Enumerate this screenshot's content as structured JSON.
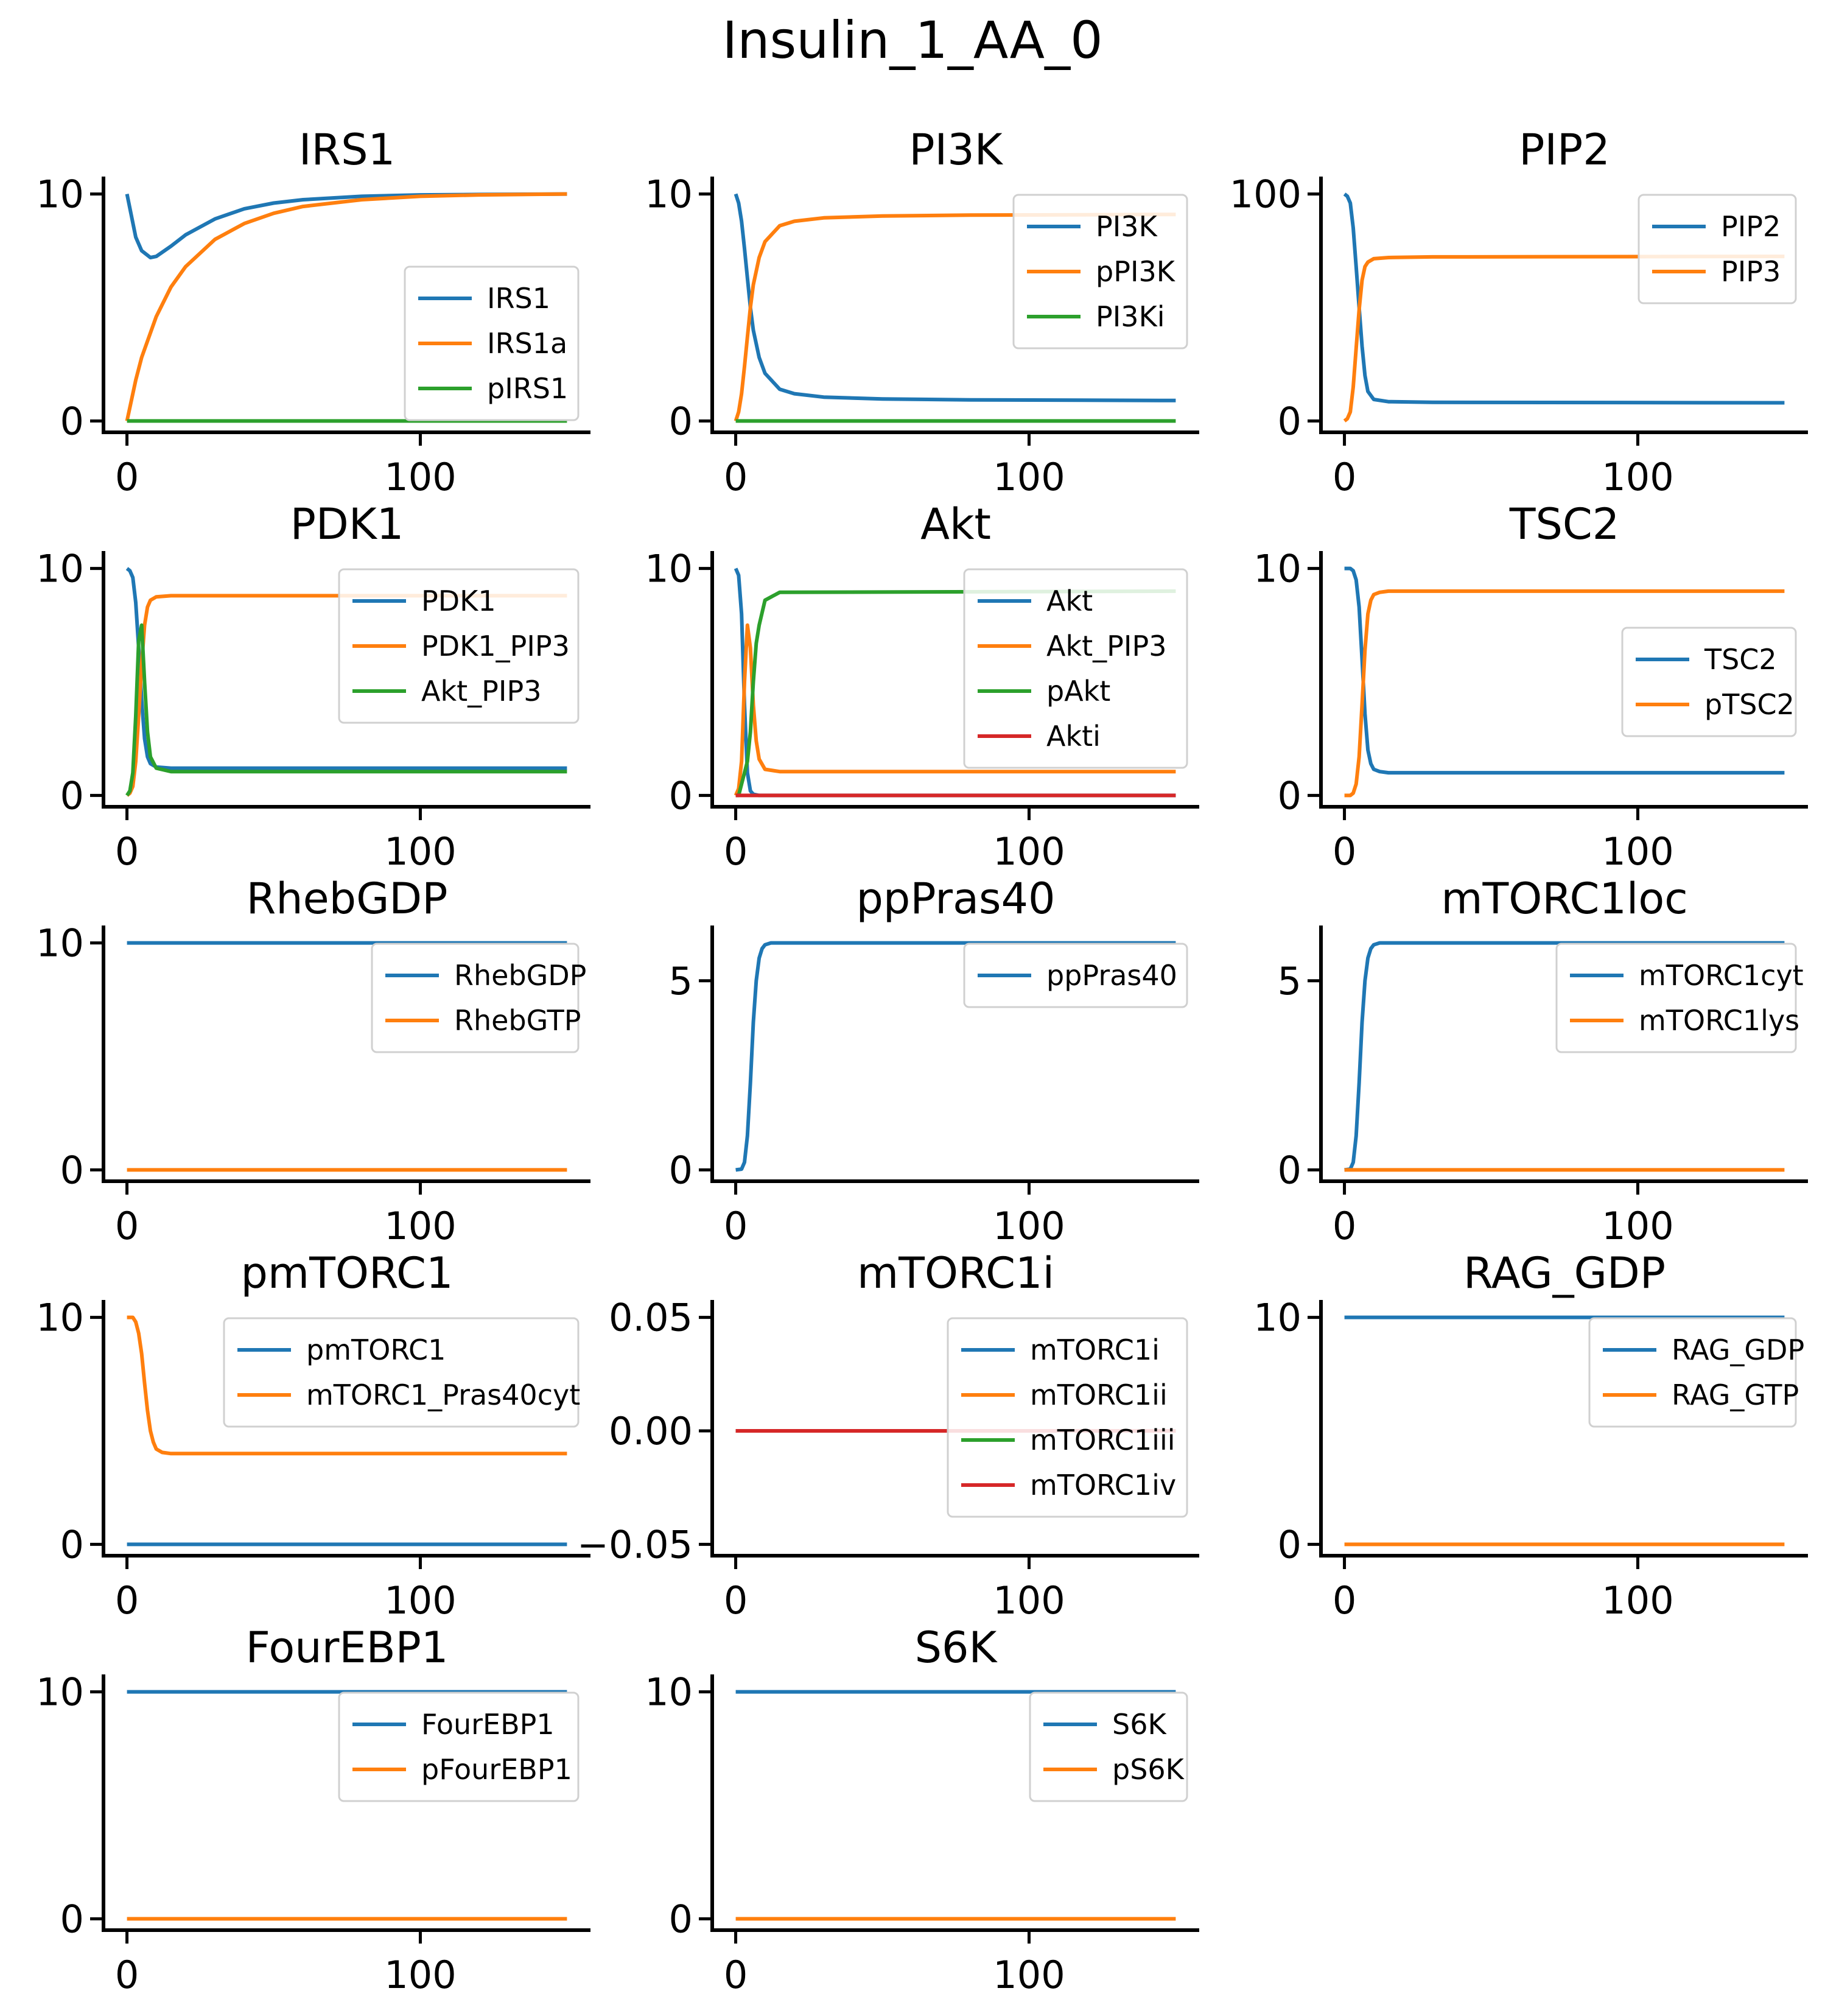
{
  "figure": {
    "title": "Insulin_1_AA_0",
    "colors": [
      "#1f77b4",
      "#ff7f0e",
      "#2ca02c",
      "#d62728"
    ]
  },
  "chart_data": [
    {
      "type": "line",
      "title": "IRS1",
      "xlim": [
        -8,
        158
      ],
      "ylim": [
        -0.5,
        10.5
      ],
      "xticks": [
        0,
        100
      ],
      "xtick_labels": [
        "0",
        "100"
      ],
      "yticks": [
        0,
        10
      ],
      "ytick_labels": [
        "0",
        "10"
      ],
      "legend": "lower-right",
      "grid": false,
      "series": [
        {
          "name": "IRS1",
          "x": [
            0,
            3,
            5,
            8,
            10,
            15,
            20,
            30,
            40,
            50,
            60,
            80,
            100,
            120,
            150
          ],
          "y": [
            10.0,
            8.1,
            7.5,
            7.2,
            7.25,
            7.7,
            8.2,
            8.9,
            9.35,
            9.6,
            9.75,
            9.9,
            9.96,
            9.98,
            10.0
          ]
        },
        {
          "name": "IRS1a",
          "x": [
            0,
            3,
            5,
            10,
            15,
            20,
            30,
            40,
            50,
            60,
            80,
            100,
            120,
            150
          ],
          "y": [
            0,
            1.8,
            2.8,
            4.6,
            5.9,
            6.8,
            8.0,
            8.7,
            9.15,
            9.45,
            9.75,
            9.9,
            9.96,
            10.0
          ]
        },
        {
          "name": "pIRS1",
          "x": [
            0,
            150
          ],
          "y": [
            0,
            0
          ]
        }
      ]
    },
    {
      "type": "line",
      "title": "PI3K",
      "xlim": [
        -8,
        158
      ],
      "ylim": [
        -0.5,
        10.5
      ],
      "xticks": [
        0,
        100
      ],
      "xtick_labels": [
        "0",
        "100"
      ],
      "yticks": [
        0,
        10
      ],
      "ytick_labels": [
        "0",
        "10"
      ],
      "legend": "upper-right",
      "grid": false,
      "series": [
        {
          "name": "PI3K",
          "x": [
            0,
            1,
            2,
            3,
            4,
            5,
            6,
            8,
            10,
            15,
            20,
            30,
            50,
            80,
            150
          ],
          "y": [
            10.0,
            9.6,
            8.8,
            7.6,
            6.3,
            5.0,
            4.0,
            2.8,
            2.1,
            1.4,
            1.2,
            1.05,
            0.97,
            0.93,
            0.9
          ]
        },
        {
          "name": "pPI3K",
          "x": [
            0,
            1,
            2,
            3,
            4,
            5,
            6,
            8,
            10,
            15,
            20,
            30,
            50,
            80,
            150
          ],
          "y": [
            0,
            0.4,
            1.2,
            2.4,
            3.7,
            5.0,
            6.0,
            7.2,
            7.9,
            8.6,
            8.8,
            8.95,
            9.03,
            9.07,
            9.1
          ]
        },
        {
          "name": "PI3Ki",
          "x": [
            0,
            150
          ],
          "y": [
            0,
            0
          ]
        }
      ]
    },
    {
      "type": "line",
      "title": "PIP2",
      "xlim": [
        -8,
        158
      ],
      "ylim": [
        -5,
        105
      ],
      "xticks": [
        0,
        100
      ],
      "xtick_labels": [
        "0",
        "100"
      ],
      "yticks": [
        0,
        100
      ],
      "ytick_labels": [
        "0",
        "100"
      ],
      "legend": "upper-right",
      "grid": false,
      "series": [
        {
          "name": "PIP2",
          "x": [
            0,
            1,
            2,
            3,
            4,
            5,
            6,
            7,
            8,
            10,
            15,
            30,
            150
          ],
          "y": [
            100,
            99,
            96,
            85,
            68,
            50,
            33,
            20,
            13,
            9.5,
            8.5,
            8.2,
            8.0
          ]
        },
        {
          "name": "PIP3",
          "x": [
            0,
            1,
            2,
            3,
            4,
            5,
            6,
            7,
            8,
            10,
            15,
            30,
            150
          ],
          "y": [
            0,
            1,
            4,
            15,
            32,
            49,
            62,
            68,
            70,
            71.5,
            72,
            72.3,
            72.5
          ]
        }
      ]
    },
    {
      "type": "line",
      "title": "PDK1",
      "xlim": [
        -8,
        158
      ],
      "ylim": [
        -0.5,
        10.5
      ],
      "xticks": [
        0,
        100
      ],
      "xtick_labels": [
        "0",
        "100"
      ],
      "yticks": [
        0,
        10
      ],
      "ytick_labels": [
        "0",
        "10"
      ],
      "legend": "upper-right",
      "grid": false,
      "series": [
        {
          "name": "PDK1",
          "x": [
            0,
            1,
            2,
            3,
            4,
            5,
            6,
            7,
            8,
            10,
            15,
            150
          ],
          "y": [
            10.0,
            9.9,
            9.6,
            8.5,
            6.5,
            4.2,
            2.5,
            1.7,
            1.4,
            1.25,
            1.2,
            1.2
          ]
        },
        {
          "name": "PDK1_PIP3",
          "x": [
            0,
            1,
            2,
            3,
            4,
            5,
            6,
            7,
            8,
            10,
            15,
            150
          ],
          "y": [
            0,
            0.1,
            0.4,
            1.5,
            3.5,
            5.8,
            7.5,
            8.3,
            8.6,
            8.75,
            8.8,
            8.8
          ]
        },
        {
          "name": "Akt_PIP3",
          "x": [
            0,
            1,
            2,
            3,
            4,
            5,
            6,
            7,
            8,
            10,
            15,
            150
          ],
          "y": [
            0,
            0.2,
            1.0,
            3.5,
            6.8,
            7.5,
            5.0,
            2.8,
            1.7,
            1.2,
            1.05,
            1.05
          ]
        }
      ]
    },
    {
      "type": "line",
      "title": "Akt",
      "xlim": [
        -8,
        158
      ],
      "ylim": [
        -0.5,
        10.5
      ],
      "xticks": [
        0,
        100
      ],
      "xtick_labels": [
        "0",
        "100"
      ],
      "yticks": [
        0,
        10
      ],
      "ytick_labels": [
        "0",
        "10"
      ],
      "legend": "upper-right",
      "grid": false,
      "series": [
        {
          "name": "Akt",
          "x": [
            0,
            1,
            2,
            3,
            4,
            5,
            6,
            8,
            150
          ],
          "y": [
            10.0,
            9.7,
            8.0,
            4.0,
            1.0,
            0.2,
            0.05,
            0,
            0
          ]
        },
        {
          "name": "Akt_PIP3",
          "x": [
            0,
            1,
            2,
            3,
            4,
            5,
            6,
            7,
            8,
            10,
            15,
            150
          ],
          "y": [
            0,
            0.3,
            1.5,
            5.0,
            7.5,
            6.5,
            4.0,
            2.4,
            1.6,
            1.15,
            1.05,
            1.05
          ]
        },
        {
          "name": "pAkt",
          "x": [
            0,
            1,
            2,
            3,
            4,
            5,
            6,
            7,
            8,
            10,
            15,
            150
          ],
          "y": [
            0,
            0,
            0.5,
            1.0,
            1.5,
            2.8,
            5.0,
            6.7,
            7.5,
            8.6,
            8.95,
            9.0
          ]
        },
        {
          "name": "Akti",
          "x": [
            0,
            150
          ],
          "y": [
            0,
            0
          ]
        }
      ]
    },
    {
      "type": "line",
      "title": "TSC2",
      "xlim": [
        -8,
        158
      ],
      "ylim": [
        -0.5,
        10.5
      ],
      "xticks": [
        0,
        100
      ],
      "xtick_labels": [
        "0",
        "100"
      ],
      "yticks": [
        0,
        10
      ],
      "ytick_labels": [
        "0",
        "10"
      ],
      "legend": "center-right",
      "grid": false,
      "series": [
        {
          "name": "TSC2",
          "x": [
            0,
            2,
            3,
            4,
            5,
            6,
            7,
            8,
            9,
            10,
            12,
            15,
            150
          ],
          "y": [
            10.0,
            10.0,
            9.9,
            9.5,
            8.3,
            6.0,
            3.6,
            2.0,
            1.4,
            1.15,
            1.05,
            1.0,
            1.0
          ]
        },
        {
          "name": "pTSC2",
          "x": [
            0,
            2,
            3,
            4,
            5,
            6,
            7,
            8,
            9,
            10,
            12,
            15,
            150
          ],
          "y": [
            0,
            0,
            0.1,
            0.5,
            1.7,
            4.0,
            6.4,
            8.0,
            8.6,
            8.85,
            8.95,
            9.0,
            9.0
          ]
        }
      ]
    },
    {
      "type": "line",
      "title": "RhebGDP",
      "xlim": [
        -8,
        158
      ],
      "ylim": [
        -0.5,
        10.5
      ],
      "xticks": [
        0,
        100
      ],
      "xtick_labels": [
        "0",
        "100"
      ],
      "yticks": [
        0,
        10
      ],
      "ytick_labels": [
        "0",
        "10"
      ],
      "legend": "upper-right",
      "grid": false,
      "series": [
        {
          "name": "RhebGDP",
          "x": [
            0,
            150
          ],
          "y": [
            10,
            10
          ]
        },
        {
          "name": "RhebGTP",
          "x": [
            0,
            150
          ],
          "y": [
            0,
            0
          ]
        }
      ]
    },
    {
      "type": "line",
      "title": "ppPras40",
      "xlim": [
        -8,
        158
      ],
      "ylim": [
        -0.3,
        6.3
      ],
      "xticks": [
        0,
        100
      ],
      "xtick_labels": [
        "0",
        "100"
      ],
      "yticks": [
        0,
        5
      ],
      "ytick_labels": [
        "0",
        "5"
      ],
      "legend": "upper-right",
      "grid": false,
      "series": [
        {
          "name": "ppPras40",
          "x": [
            0,
            2,
            3,
            4,
            5,
            6,
            7,
            8,
            9,
            10,
            12,
            15,
            150
          ],
          "y": [
            0,
            0.02,
            0.2,
            0.9,
            2.3,
            3.9,
            5.0,
            5.6,
            5.85,
            5.95,
            6.0,
            6.0,
            6.0
          ]
        }
      ]
    },
    {
      "type": "line",
      "title": "mTORC1loc",
      "xlim": [
        -8,
        158
      ],
      "ylim": [
        -0.3,
        6.3
      ],
      "xticks": [
        0,
        100
      ],
      "xtick_labels": [
        "0",
        "100"
      ],
      "yticks": [
        0,
        5
      ],
      "ytick_labels": [
        "0",
        "5"
      ],
      "legend": "upper-right",
      "grid": false,
      "series": [
        {
          "name": "mTORC1cyt",
          "x": [
            0,
            2,
            3,
            4,
            5,
            6,
            7,
            8,
            9,
            10,
            12,
            15,
            150
          ],
          "y": [
            0,
            0.02,
            0.2,
            0.9,
            2.3,
            3.9,
            5.0,
            5.6,
            5.85,
            5.95,
            6.0,
            6.0,
            6.0
          ]
        },
        {
          "name": "mTORC1lys",
          "x": [
            0,
            150
          ],
          "y": [
            0,
            0
          ]
        }
      ]
    },
    {
      "type": "line",
      "title": "pmTORC1",
      "xlim": [
        -8,
        158
      ],
      "ylim": [
        -0.5,
        10.5
      ],
      "xticks": [
        0,
        100
      ],
      "xtick_labels": [
        "0",
        "100"
      ],
      "yticks": [
        0,
        10
      ],
      "ytick_labels": [
        "0",
        "10"
      ],
      "legend": "upper-right",
      "grid": false,
      "series": [
        {
          "name": "pmTORC1",
          "x": [
            0,
            150
          ],
          "y": [
            0,
            0
          ]
        },
        {
          "name": "mTORC1_Pras40cyt",
          "x": [
            0,
            2,
            3,
            4,
            5,
            6,
            7,
            8,
            9,
            10,
            12,
            15,
            150
          ],
          "y": [
            10.0,
            10.0,
            9.8,
            9.3,
            8.4,
            7.1,
            5.9,
            5.0,
            4.5,
            4.2,
            4.05,
            4.0,
            4.0
          ]
        }
      ]
    },
    {
      "type": "line",
      "title": "mTORC1i",
      "xlim": [
        -8,
        158
      ],
      "ylim": [
        -0.055,
        0.055
      ],
      "xticks": [
        0,
        100
      ],
      "xtick_labels": [
        "0",
        "100"
      ],
      "yticks": [
        -0.05,
        0.0,
        0.05
      ],
      "ytick_labels": [
        "−0.05",
        "0.00",
        "0.05"
      ],
      "legend": "upper-right",
      "grid": false,
      "series": [
        {
          "name": "mTORC1i",
          "x": [
            0,
            150
          ],
          "y": [
            0,
            0
          ]
        },
        {
          "name": "mTORC1ii",
          "x": [
            0,
            150
          ],
          "y": [
            0,
            0
          ]
        },
        {
          "name": "mTORC1iii",
          "x": [
            0,
            150
          ],
          "y": [
            0,
            0
          ]
        },
        {
          "name": "mTORC1iv",
          "x": [
            0,
            150
          ],
          "y": [
            0,
            0
          ]
        }
      ]
    },
    {
      "type": "line",
      "title": "RAG_GDP",
      "xlim": [
        -8,
        158
      ],
      "ylim": [
        -0.5,
        10.5
      ],
      "xticks": [
        0,
        100
      ],
      "xtick_labels": [
        "0",
        "100"
      ],
      "yticks": [
        0,
        10
      ],
      "ytick_labels": [
        "0",
        "10"
      ],
      "legend": "upper-right",
      "grid": false,
      "series": [
        {
          "name": "RAG_GDP",
          "x": [
            0,
            150
          ],
          "y": [
            10,
            10
          ]
        },
        {
          "name": "RAG_GTP",
          "x": [
            0,
            150
          ],
          "y": [
            0,
            0
          ]
        }
      ]
    },
    {
      "type": "line",
      "title": "FourEBP1",
      "xlim": [
        -8,
        158
      ],
      "ylim": [
        -0.5,
        10.5
      ],
      "xticks": [
        0,
        100
      ],
      "xtick_labels": [
        "0",
        "100"
      ],
      "yticks": [
        0,
        10
      ],
      "ytick_labels": [
        "0",
        "10"
      ],
      "legend": "upper-right",
      "grid": false,
      "series": [
        {
          "name": "FourEBP1",
          "x": [
            0,
            150
          ],
          "y": [
            10,
            10
          ]
        },
        {
          "name": "pFourEBP1",
          "x": [
            0,
            150
          ],
          "y": [
            0,
            0
          ]
        }
      ]
    },
    {
      "type": "line",
      "title": "S6K",
      "xlim": [
        -8,
        158
      ],
      "ylim": [
        -0.5,
        10.5
      ],
      "xticks": [
        0,
        100
      ],
      "xtick_labels": [
        "0",
        "100"
      ],
      "yticks": [
        0,
        10
      ],
      "ytick_labels": [
        "0",
        "10"
      ],
      "legend": "upper-right",
      "grid": false,
      "series": [
        {
          "name": "S6K",
          "x": [
            0,
            150
          ],
          "y": [
            10,
            10
          ]
        },
        {
          "name": "pS6K",
          "x": [
            0,
            150
          ],
          "y": [
            0,
            0
          ]
        }
      ]
    }
  ]
}
